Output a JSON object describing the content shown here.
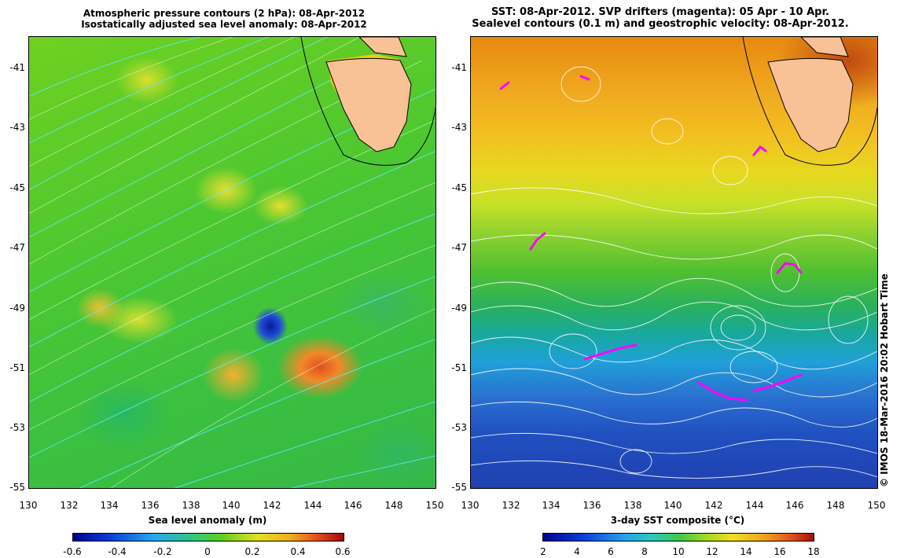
{
  "left_panel": {
    "title_line1": "Atmospheric pressure contours (2 hPa): 08-Apr-2012",
    "title_line2": "Isostatically adjusted sea level anomaly: 08-Apr-2012",
    "xlabel": "Sea level anomaly (m)",
    "colorbar_ticks": [
      "-0.6",
      "-0.4",
      "-0.2",
      "0",
      "0.2",
      "0.4",
      "0.6"
    ]
  },
  "right_panel": {
    "title_line1": "SST: 08-Apr-2012. SVP drifters (magenta): 05 Apr - 10 Apr.",
    "title_line2": "Sealevel contours (0.1 m) and geostrophic velocity: 08-Apr-2012.",
    "xlabel": "3-day SST composite (°C)",
    "colorbar_ticks": [
      "2",
      "4",
      "6",
      "8",
      "10",
      "12",
      "14",
      "16",
      "18"
    ]
  },
  "y_ticks": [
    "-41",
    "-43",
    "-45",
    "-47",
    "-49",
    "-51",
    "-53",
    "-55"
  ],
  "x_ticks": [
    "130",
    "132",
    "134",
    "136",
    "138",
    "140",
    "142",
    "144",
    "146",
    "148",
    "150"
  ],
  "credit": "© IMOS 18-Mar-2016 20:02 Hobart Time",
  "colors": {
    "land": "#f9c296",
    "drifter": "#ff00ff",
    "pressure_contour": "#60e8e8"
  },
  "chart_data": {
    "type": "heatmap",
    "x_range": [
      130,
      150
    ],
    "y_range": [
      -55,
      -40
    ],
    "sea_level_anomaly_range": [
      -0.6,
      0.6
    ],
    "sst_range": [
      2,
      18
    ]
  }
}
